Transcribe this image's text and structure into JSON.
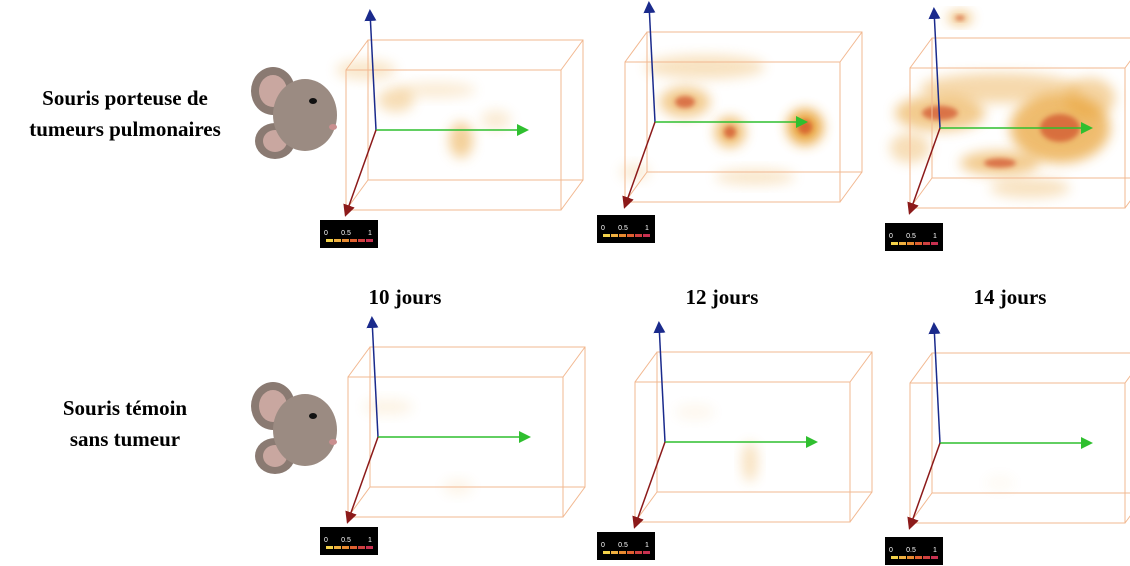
{
  "rows": [
    {
      "label_lines": [
        "Souris porteuse de",
        "tumeurs pulmonaires"
      ]
    },
    {
      "label_lines": [
        "Souris témoin",
        "sans tumeur"
      ]
    }
  ],
  "timepoints": [
    "10 jours",
    "12 jours",
    "14 jours"
  ],
  "colorbar": {
    "ticks": [
      "0",
      "0.5",
      "1"
    ]
  }
}
